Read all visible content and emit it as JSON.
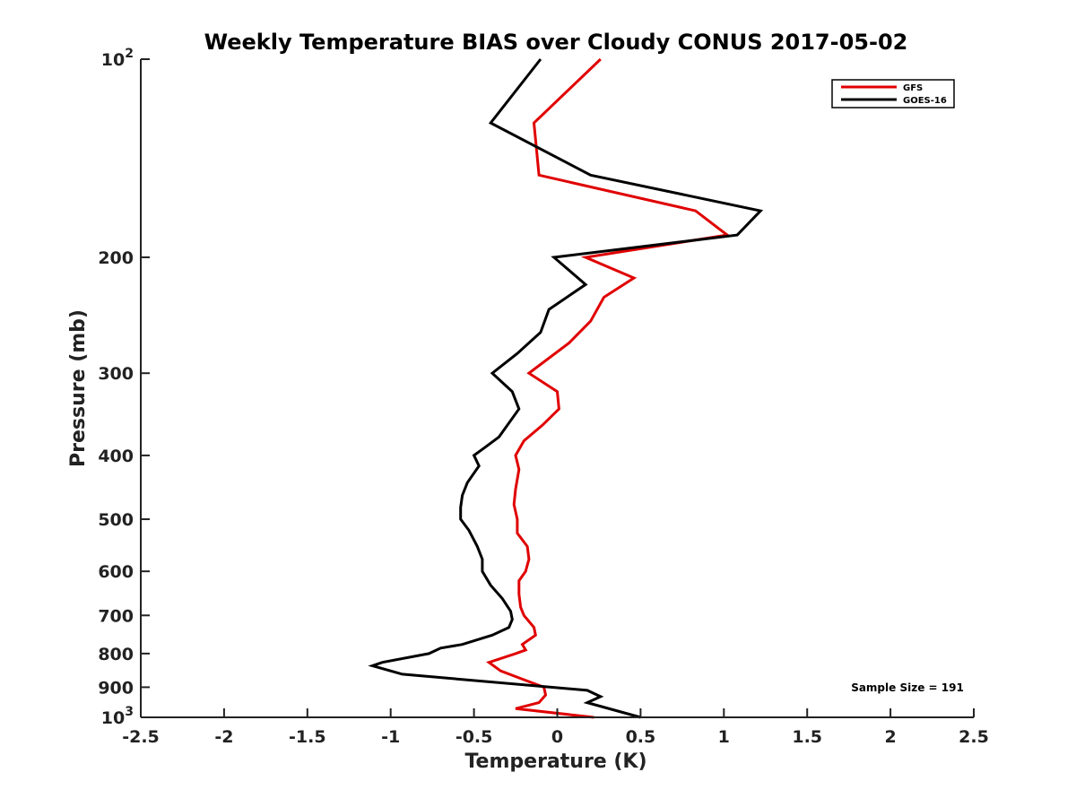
{
  "chart_data": {
    "type": "line",
    "title": "Weekly Temperature BIAS over Cloudy CONUS 2017-05-02",
    "xlabel": "Temperature (K)",
    "ylabel": "Pressure (mb)",
    "xlim": [
      -2.5,
      2.5
    ],
    "ylim": [
      100,
      1000
    ],
    "y_scale": "log",
    "y_reversed": true,
    "x_ticks": [
      "-2.5",
      "-2",
      "-1.5",
      "-1",
      "-0.5",
      "0",
      "0.5",
      "1",
      "1.5",
      "2",
      "2.5"
    ],
    "y_ticks": [
      {
        "value": 100,
        "base": "10",
        "exp": "2"
      },
      {
        "value": 200,
        "label": "200"
      },
      {
        "value": 300,
        "label": "300"
      },
      {
        "value": 400,
        "label": "400"
      },
      {
        "value": 500,
        "label": "500"
      },
      {
        "value": 600,
        "label": "600"
      },
      {
        "value": 700,
        "label": "700"
      },
      {
        "value": 800,
        "label": "800"
      },
      {
        "value": 900,
        "label": "900"
      },
      {
        "value": 1000,
        "base": "10",
        "exp": "3"
      }
    ],
    "grid": false,
    "legend_position": "top-right",
    "annotation": "Sample Size = 191",
    "series": [
      {
        "name": "GFS",
        "color": "#e00000",
        "points": [
          [
            0.26,
            100
          ],
          [
            -0.14,
            125
          ],
          [
            -0.11,
            150
          ],
          [
            0.83,
            170
          ],
          [
            1.02,
            185
          ],
          [
            0.17,
            200
          ],
          [
            0.46,
            215
          ],
          [
            0.28,
            230
          ],
          [
            0.2,
            250
          ],
          [
            0.07,
            270
          ],
          [
            -0.17,
            300
          ],
          [
            0.0,
            320
          ],
          [
            0.01,
            340
          ],
          [
            -0.09,
            360
          ],
          [
            -0.2,
            380
          ],
          [
            -0.25,
            400
          ],
          [
            -0.23,
            420
          ],
          [
            -0.25,
            450
          ],
          [
            -0.26,
            475
          ],
          [
            -0.24,
            500
          ],
          [
            -0.24,
            525
          ],
          [
            -0.18,
            550
          ],
          [
            -0.17,
            575
          ],
          [
            -0.19,
            600
          ],
          [
            -0.23,
            620
          ],
          [
            -0.23,
            650
          ],
          [
            -0.22,
            680
          ],
          [
            -0.2,
            700
          ],
          [
            -0.14,
            730
          ],
          [
            -0.13,
            750
          ],
          [
            -0.21,
            775
          ],
          [
            -0.19,
            790
          ],
          [
            -0.25,
            800
          ],
          [
            -0.41,
            825
          ],
          [
            -0.34,
            850
          ],
          [
            -0.21,
            875
          ],
          [
            -0.08,
            900
          ],
          [
            -0.07,
            925
          ],
          [
            -0.11,
            950
          ],
          [
            -0.25,
            970
          ],
          [
            0.22,
            1000
          ]
        ]
      },
      {
        "name": "GOES-16",
        "color": "#000000",
        "points": [
          [
            -0.1,
            100
          ],
          [
            -0.4,
            125
          ],
          [
            0.2,
            150
          ],
          [
            1.22,
            170
          ],
          [
            1.08,
            185
          ],
          [
            -0.02,
            200
          ],
          [
            0.17,
            220
          ],
          [
            -0.05,
            240
          ],
          [
            -0.1,
            260
          ],
          [
            -0.24,
            280
          ],
          [
            -0.39,
            300
          ],
          [
            -0.27,
            320
          ],
          [
            -0.23,
            340
          ],
          [
            -0.3,
            360
          ],
          [
            -0.35,
            375
          ],
          [
            -0.44,
            390
          ],
          [
            -0.5,
            400
          ],
          [
            -0.47,
            415
          ],
          [
            -0.54,
            440
          ],
          [
            -0.57,
            460
          ],
          [
            -0.58,
            480
          ],
          [
            -0.58,
            500
          ],
          [
            -0.53,
            520
          ],
          [
            -0.48,
            550
          ],
          [
            -0.45,
            575
          ],
          [
            -0.45,
            600
          ],
          [
            -0.4,
            630
          ],
          [
            -0.33,
            660
          ],
          [
            -0.28,
            690
          ],
          [
            -0.27,
            710
          ],
          [
            -0.29,
            730
          ],
          [
            -0.39,
            750
          ],
          [
            -0.57,
            775
          ],
          [
            -0.7,
            785
          ],
          [
            -0.77,
            800
          ],
          [
            -1.05,
            825
          ],
          [
            -1.11,
            835
          ],
          [
            -0.93,
            860
          ],
          [
            0.18,
            910
          ],
          [
            0.26,
            930
          ],
          [
            0.18,
            950
          ],
          [
            0.5,
            1000
          ]
        ]
      }
    ]
  }
}
